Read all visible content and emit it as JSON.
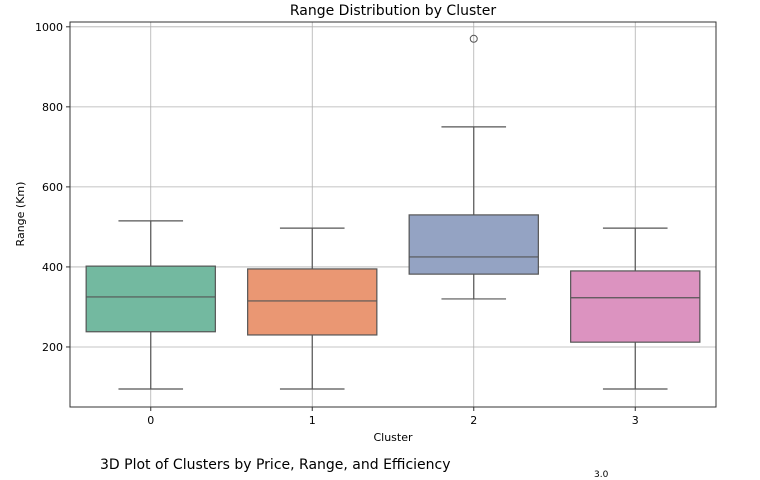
{
  "chart_data": {
    "type": "box",
    "title": "Range Distribution by Cluster",
    "xlabel": "Cluster",
    "ylabel": "Range (Km)",
    "ylim": [
      50,
      1012
    ],
    "yticks": [
      200,
      400,
      600,
      800,
      1000
    ],
    "grid": true,
    "categories": [
      "0",
      "1",
      "2",
      "3"
    ],
    "boxes": [
      {
        "cluster": "0",
        "whisker_low": 95,
        "q1": 238,
        "median": 325,
        "q3": 402,
        "whisker_high": 515,
        "outliers": [],
        "color": "#73b9a0"
      },
      {
        "cluster": "1",
        "whisker_low": 95,
        "q1": 230,
        "median": 315,
        "q3": 395,
        "whisker_high": 497,
        "outliers": [],
        "color": "#ea9773"
      },
      {
        "cluster": "2",
        "whisker_low": 320,
        "q1": 382,
        "median": 425,
        "q3": 530,
        "whisker_high": 750,
        "outliers": [
          970
        ],
        "color": "#94a3c3"
      },
      {
        "cluster": "3",
        "whisker_low": 95,
        "q1": 212,
        "median": 323,
        "q3": 390,
        "whisker_high": 497,
        "outliers": [],
        "color": "#dc93c0"
      }
    ]
  },
  "next_section": {
    "title": "3D Plot of Clusters by Price, Range, and Efficiency",
    "cut_label": "3.0"
  }
}
